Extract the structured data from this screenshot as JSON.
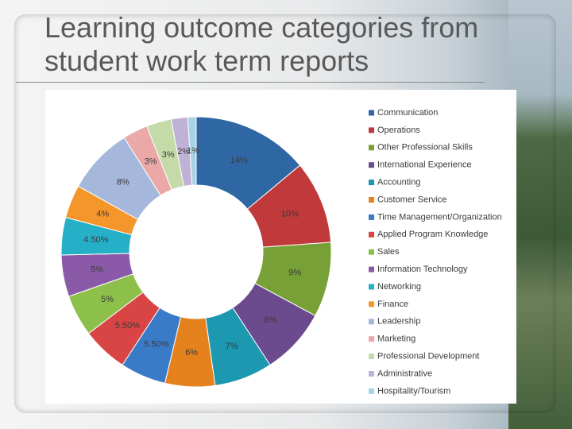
{
  "title": "Learning outcome categories from student work term reports",
  "chart_data": {
    "type": "donut",
    "categories": [
      "Communication",
      "Operations",
      "Other Professional Skills",
      "International Experience",
      "Accounting",
      "Customer Service",
      "Time Management/Organization",
      "Applied Program Knowledge",
      "Sales",
      "Information Technology",
      "Networking",
      "Finance",
      "Leadership",
      "Marketing",
      "Professional Development",
      "Administrative",
      "Hospitality/Tourism"
    ],
    "values": [
      14,
      10,
      9,
      8,
      7,
      6,
      5.5,
      5.5,
      5,
      5,
      4.5,
      4,
      8,
      3,
      3,
      2,
      1
    ],
    "value_labels": [
      "14%",
      "10%",
      "9%",
      "8%",
      "7%",
      "6%",
      "5.50%",
      "5.50%",
      "5%",
      "5%",
      "4.50%",
      "4%",
      "8%",
      "3%",
      "3%",
      "2%",
      "1%"
    ],
    "colors": [
      "#2e67a3",
      "#c0393b",
      "#77a037",
      "#6c4a8e",
      "#1c98b0",
      "#e6821e",
      "#3a7bc8",
      "#d94545",
      "#8dc04a",
      "#8a5aa8",
      "#25b0c8",
      "#f5962a",
      "#a5b8dc",
      "#eaa8a8",
      "#c4dba8",
      "#c0b2d6",
      "#a8d3e6"
    ],
    "legend": "right"
  }
}
